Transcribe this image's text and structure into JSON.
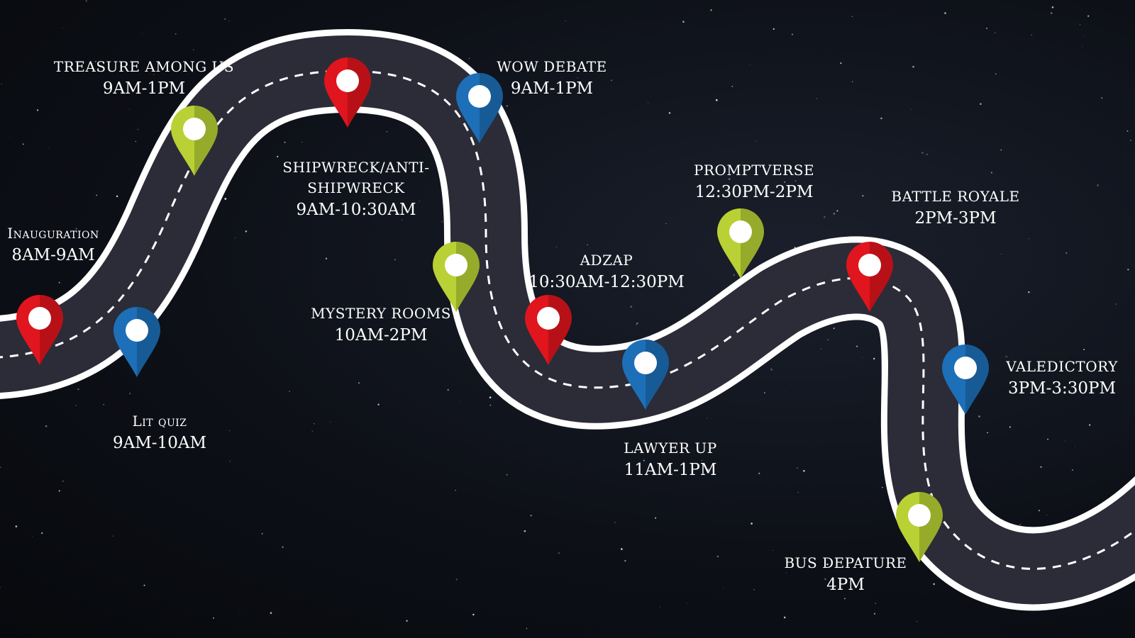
{
  "colors": {
    "road": "#2b2c38",
    "road_edge": "#ffffff",
    "pin_red": "#e0151d",
    "pin_blue": "#1d6fb8",
    "pin_green": "#b9d134"
  },
  "events": [
    {
      "name": "Inauguration",
      "time": "8AM-9AM",
      "pin_color": "red"
    },
    {
      "name": "Lit quiz",
      "time": "9AM-10AM",
      "pin_color": "blue"
    },
    {
      "name": "TREASURE AMONG US",
      "time": "9AM-1PM",
      "pin_color": "green"
    },
    {
      "name": "SHIPWRECK/ANTI-",
      "name2": "SHIPWRECK",
      "time": "9AM-10:30AM",
      "pin_color": "red"
    },
    {
      "name": "WOW DEBATE",
      "time": "9AM-1PM",
      "pin_color": "blue"
    },
    {
      "name": "MYSTERY ROOMS",
      "time": "10AM-2PM",
      "pin_color": "green"
    },
    {
      "name": "ADZAP",
      "time": "10:30AM-12:30PM",
      "pin_color": "red"
    },
    {
      "name": "LAWYER UP",
      "time": "11AM-1PM",
      "pin_color": "blue"
    },
    {
      "name": "PROMPTVERSE",
      "time": "12:30PM-2PM",
      "pin_color": "green"
    },
    {
      "name": "BATTLE ROYALE",
      "time": "2PM-3PM",
      "pin_color": "red"
    },
    {
      "name": "VALEDICTORY",
      "time": "3PM-3:30PM",
      "pin_color": "blue"
    },
    {
      "name": "BUS DEPATURE",
      "time": "4PM",
      "pin_color": "green"
    }
  ]
}
